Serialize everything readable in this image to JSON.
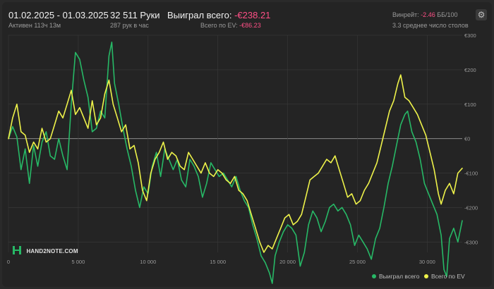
{
  "header": {
    "date_range": "01.02.2025 - 01.03.2025",
    "active_time": "Активен 113ч 13м",
    "hands": "32 511 Руки",
    "hands_per_hour": "287 рук в час",
    "won_label": "Выиграл всего:",
    "won_value": "-€238.21",
    "ev_label": "Всего по EV:",
    "ev_value": "-€86.23",
    "winrate_label": "Винрейт:",
    "winrate_value": "-2.46",
    "winrate_unit": "ББ/100",
    "avg_tables": "3.3 среднее число столов"
  },
  "settings_icon": "gear-icon",
  "logo": {
    "text": "HAND2NOTE.COM",
    "icon": "h2n-logo-icon"
  },
  "colors": {
    "won": "#27b866",
    "ev": "#eef24a",
    "negative": "#ff4f86",
    "background": "#242424",
    "grid": "#3a3a3a",
    "zero_line": "#8a8a8a"
  },
  "chart_data": {
    "type": "line",
    "xlim": [
      0,
      32511
    ],
    "ylim": [
      -330,
      300
    ],
    "x_ticks": [
      0,
      5000,
      10000,
      15000,
      20000,
      25000,
      30000
    ],
    "x_tick_labels": [
      "0",
      "5 000",
      "10 000",
      "15 000",
      "20 000",
      "25 000",
      "30 000"
    ],
    "y_ticks": [
      300,
      200,
      100,
      0,
      -100,
      -200,
      -300
    ],
    "y_tick_labels": [
      "€300",
      "€200",
      "€100",
      "€0",
      "-€100",
      "-€200",
      "-€300"
    ],
    "grid": true,
    "legend_position": "bottom-right",
    "series": [
      {
        "name": "Выиграл всего",
        "color": "#27b866",
        "points": [
          [
            0,
            0
          ],
          [
            300,
            35
          ],
          [
            600,
            5
          ],
          [
            900,
            -90
          ],
          [
            1200,
            -30
          ],
          [
            1500,
            -130
          ],
          [
            1800,
            -20
          ],
          [
            2100,
            -80
          ],
          [
            2400,
            -10
          ],
          [
            2700,
            20
          ],
          [
            3000,
            -50
          ],
          [
            3300,
            -60
          ],
          [
            3600,
            0
          ],
          [
            3900,
            -50
          ],
          [
            4200,
            -90
          ],
          [
            4500,
            100
          ],
          [
            4800,
            250
          ],
          [
            5100,
            230
          ],
          [
            5400,
            170
          ],
          [
            5700,
            120
          ],
          [
            6000,
            20
          ],
          [
            6300,
            30
          ],
          [
            6600,
            80
          ],
          [
            6900,
            60
          ],
          [
            7200,
            240
          ],
          [
            7400,
            280
          ],
          [
            7600,
            160
          ],
          [
            7900,
            100
          ],
          [
            8200,
            30
          ],
          [
            8500,
            -30
          ],
          [
            8800,
            -80
          ],
          [
            9100,
            -150
          ],
          [
            9400,
            -200
          ],
          [
            9700,
            -140
          ],
          [
            10000,
            -160
          ],
          [
            10300,
            -80
          ],
          [
            10600,
            -40
          ],
          [
            10900,
            -110
          ],
          [
            11200,
            -30
          ],
          [
            11500,
            -60
          ],
          [
            11800,
            -90
          ],
          [
            12100,
            -60
          ],
          [
            12400,
            -120
          ],
          [
            12700,
            -140
          ],
          [
            13000,
            -60
          ],
          [
            13300,
            -80
          ],
          [
            13600,
            -110
          ],
          [
            13900,
            -170
          ],
          [
            14200,
            -130
          ],
          [
            14500,
            -70
          ],
          [
            14800,
            -90
          ],
          [
            15100,
            -110
          ],
          [
            15400,
            -100
          ],
          [
            15700,
            -120
          ],
          [
            16000,
            -140
          ],
          [
            16300,
            -110
          ],
          [
            16600,
            -150
          ],
          [
            16900,
            -180
          ],
          [
            17200,
            -200
          ],
          [
            17500,
            -250
          ],
          [
            17800,
            -290
          ],
          [
            18100,
            -340
          ],
          [
            18400,
            -360
          ],
          [
            18700,
            -390
          ],
          [
            18900,
            -420
          ],
          [
            19100,
            -340
          ],
          [
            19400,
            -300
          ],
          [
            19700,
            -270
          ],
          [
            20000,
            -250
          ],
          [
            20300,
            -260
          ],
          [
            20600,
            -280
          ],
          [
            20900,
            -370
          ],
          [
            21200,
            -330
          ],
          [
            21500,
            -250
          ],
          [
            21800,
            -210
          ],
          [
            22100,
            -230
          ],
          [
            22400,
            -270
          ],
          [
            22700,
            -240
          ],
          [
            23000,
            -200
          ],
          [
            23300,
            -190
          ],
          [
            23600,
            -210
          ],
          [
            23900,
            -200
          ],
          [
            24200,
            -220
          ],
          [
            24500,
            -250
          ],
          [
            24800,
            -310
          ],
          [
            25100,
            -280
          ],
          [
            25400,
            -300
          ],
          [
            25700,
            -320
          ],
          [
            26000,
            -350
          ],
          [
            26300,
            -290
          ],
          [
            26600,
            -260
          ],
          [
            26900,
            -200
          ],
          [
            27200,
            -130
          ],
          [
            27500,
            -80
          ],
          [
            27800,
            -20
          ],
          [
            28100,
            40
          ],
          [
            28400,
            70
          ],
          [
            28600,
            80
          ],
          [
            28900,
            20
          ],
          [
            29200,
            -10
          ],
          [
            29500,
            -60
          ],
          [
            29800,
            -130
          ],
          [
            30100,
            -160
          ],
          [
            30400,
            -190
          ],
          [
            30700,
            -220
          ],
          [
            31000,
            -280
          ],
          [
            31200,
            -380
          ],
          [
            31400,
            -400
          ],
          [
            31600,
            -290
          ],
          [
            31900,
            -260
          ],
          [
            32200,
            -300
          ],
          [
            32511,
            -238
          ]
        ]
      },
      {
        "name": "Всего по EV",
        "color": "#eef24a",
        "points": [
          [
            0,
            0
          ],
          [
            300,
            60
          ],
          [
            600,
            100
          ],
          [
            900,
            20
          ],
          [
            1200,
            10
          ],
          [
            1500,
            -40
          ],
          [
            1800,
            -10
          ],
          [
            2100,
            -30
          ],
          [
            2400,
            30
          ],
          [
            2700,
            -10
          ],
          [
            3000,
            0
          ],
          [
            3300,
            40
          ],
          [
            3600,
            80
          ],
          [
            3900,
            60
          ],
          [
            4200,
            100
          ],
          [
            4500,
            140
          ],
          [
            4800,
            70
          ],
          [
            5100,
            90
          ],
          [
            5400,
            60
          ],
          [
            5700,
            30
          ],
          [
            6000,
            110
          ],
          [
            6300,
            40
          ],
          [
            6600,
            60
          ],
          [
            6900,
            130
          ],
          [
            7200,
            170
          ],
          [
            7500,
            100
          ],
          [
            7800,
            60
          ],
          [
            8100,
            20
          ],
          [
            8400,
            40
          ],
          [
            8700,
            -30
          ],
          [
            9000,
            -20
          ],
          [
            9300,
            -70
          ],
          [
            9600,
            -150
          ],
          [
            9900,
            -180
          ],
          [
            10200,
            -100
          ],
          [
            10500,
            -60
          ],
          [
            10800,
            -40
          ],
          [
            11100,
            -10
          ],
          [
            11400,
            -60
          ],
          [
            11700,
            -40
          ],
          [
            12000,
            -50
          ],
          [
            12300,
            -80
          ],
          [
            12600,
            -90
          ],
          [
            12900,
            -40
          ],
          [
            13200,
            -60
          ],
          [
            13500,
            -80
          ],
          [
            13800,
            -100
          ],
          [
            14100,
            -70
          ],
          [
            14400,
            -100
          ],
          [
            14700,
            -110
          ],
          [
            15000,
            -90
          ],
          [
            15300,
            -100
          ],
          [
            15600,
            -120
          ],
          [
            15900,
            -130
          ],
          [
            16200,
            -110
          ],
          [
            16500,
            -150
          ],
          [
            16800,
            -160
          ],
          [
            17100,
            -180
          ],
          [
            17400,
            -220
          ],
          [
            17700,
            -260
          ],
          [
            18000,
            -300
          ],
          [
            18300,
            -330
          ],
          [
            18600,
            -310
          ],
          [
            18900,
            -320
          ],
          [
            19200,
            -290
          ],
          [
            19500,
            -260
          ],
          [
            19800,
            -230
          ],
          [
            20100,
            -220
          ],
          [
            20400,
            -250
          ],
          [
            20700,
            -240
          ],
          [
            21000,
            -220
          ],
          [
            21300,
            -170
          ],
          [
            21600,
            -120
          ],
          [
            21900,
            -110
          ],
          [
            22200,
            -100
          ],
          [
            22500,
            -80
          ],
          [
            22800,
            -60
          ],
          [
            23100,
            -70
          ],
          [
            23400,
            -50
          ],
          [
            23700,
            -90
          ],
          [
            24000,
            -130
          ],
          [
            24300,
            -170
          ],
          [
            24600,
            -160
          ],
          [
            24900,
            -190
          ],
          [
            25200,
            -180
          ],
          [
            25500,
            -150
          ],
          [
            25800,
            -130
          ],
          [
            26100,
            -100
          ],
          [
            26400,
            -70
          ],
          [
            26700,
            -20
          ],
          [
            27000,
            30
          ],
          [
            27300,
            80
          ],
          [
            27600,
            110
          ],
          [
            27900,
            160
          ],
          [
            28100,
            185
          ],
          [
            28400,
            120
          ],
          [
            28700,
            110
          ],
          [
            29000,
            90
          ],
          [
            29300,
            70
          ],
          [
            29600,
            40
          ],
          [
            29900,
            10
          ],
          [
            30200,
            -40
          ],
          [
            30500,
            -90
          ],
          [
            30800,
            -160
          ],
          [
            31000,
            -190
          ],
          [
            31300,
            -150
          ],
          [
            31600,
            -130
          ],
          [
            31900,
            -160
          ],
          [
            32200,
            -100
          ],
          [
            32511,
            -86
          ]
        ]
      }
    ]
  },
  "legend": {
    "won_label": "Выиграл всего",
    "ev_label": "Всего по EV"
  }
}
